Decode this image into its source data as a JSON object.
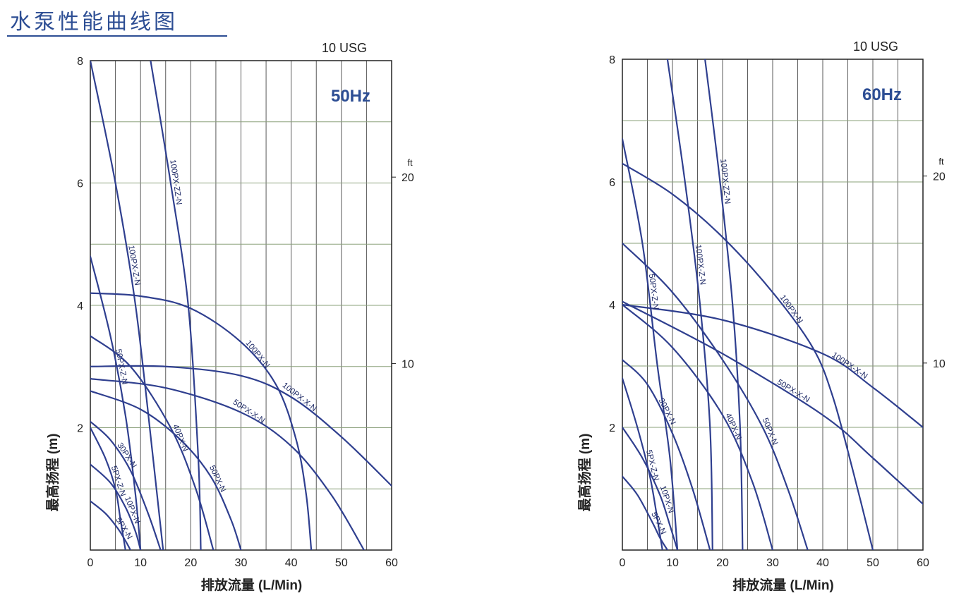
{
  "page": {
    "title": "水泵性能曲线图"
  },
  "colors": {
    "curve": "#2f3f8f",
    "grid": "#5a5a5a",
    "grid_minor": "#8aa07a",
    "title": "#2d4e94",
    "freq": "#2d4e94"
  },
  "chart_data": [
    {
      "type": "line",
      "frequency_label": "50Hz",
      "top_label": "10 USG",
      "xlabel": "排放流量 (L/Min)",
      "ylabel": "最高扬程 (m)",
      "y2_unit": "ft",
      "xlim": [
        0,
        60
      ],
      "ylim": [
        0,
        8
      ],
      "x_ticks": [
        0,
        10,
        20,
        30,
        40,
        50,
        60
      ],
      "y_ticks": [
        2,
        4,
        6,
        8
      ],
      "y2_ticks": [
        10,
        20
      ],
      "grid": true,
      "series": [
        {
          "name": "100PX-ZZ-N",
          "x": [
            12,
            16,
            19.5,
            21.5,
            22
          ],
          "y": [
            8,
            6,
            4,
            1.5,
            0
          ]
        },
        {
          "name": "100PX-Z-N",
          "x": [
            0,
            5,
            9,
            12.5,
            14.5
          ],
          "y": [
            8,
            6,
            4,
            1.5,
            0
          ]
        },
        {
          "name": "100PX-N",
          "x": [
            0,
            10,
            20,
            30,
            37,
            41,
            43,
            44
          ],
          "y": [
            4.2,
            4.15,
            3.95,
            3.4,
            2.7,
            1.8,
            0.9,
            0
          ]
        },
        {
          "name": "100PX-X-N",
          "x": [
            0,
            15,
            30,
            40,
            50,
            60
          ],
          "y": [
            3,
            3,
            2.85,
            2.5,
            1.85,
            1.05
          ]
        },
        {
          "name": "50PX-X-N",
          "x": [
            0,
            15,
            30,
            40,
            48,
            54.5
          ],
          "y": [
            2.8,
            2.65,
            2.25,
            1.7,
            0.9,
            0
          ]
        },
        {
          "name": "50PX-N",
          "x": [
            0,
            10,
            18,
            24,
            28,
            30
          ],
          "y": [
            2.6,
            2.3,
            1.8,
            1.2,
            0.5,
            0
          ]
        },
        {
          "name": "50PX-Z-N",
          "x": [
            0,
            4,
            7,
            9,
            10
          ],
          "y": [
            4.8,
            3.5,
            2.2,
            0.9,
            0
          ]
        },
        {
          "name": "40PX-N",
          "x": [
            0,
            8,
            16,
            21,
            24.5
          ],
          "y": [
            3.5,
            3,
            2,
            1,
            0
          ]
        },
        {
          "name": "30PX-N",
          "x": [
            0,
            4,
            8,
            11.5,
            14
          ],
          "y": [
            2.1,
            1.8,
            1.3,
            0.6,
            0
          ]
        },
        {
          "name": "10PX-N",
          "x": [
            0,
            4,
            7,
            9,
            10
          ],
          "y": [
            1.4,
            1.1,
            0.7,
            0.3,
            0
          ]
        },
        {
          "name": "5PX-Z-N",
          "x": [
            0,
            3,
            5,
            6,
            7
          ],
          "y": [
            2,
            1.5,
            1,
            0.5,
            0
          ]
        },
        {
          "name": "5PX-N",
          "x": [
            0,
            3,
            5.5,
            7,
            8
          ],
          "y": [
            0.8,
            0.6,
            0.35,
            0.15,
            0
          ]
        }
      ]
    },
    {
      "type": "line",
      "frequency_label": "60Hz",
      "top_label": "10 USG",
      "xlabel": "排放流量 (L/Min)",
      "ylabel": "最高扬程 (m)",
      "y2_unit": "ft",
      "xlim": [
        0,
        60
      ],
      "ylim": [
        0,
        8
      ],
      "x_ticks": [
        0,
        10,
        20,
        30,
        40,
        50,
        60
      ],
      "y_ticks": [
        2,
        4,
        6,
        8
      ],
      "y2_ticks": [
        10,
        20
      ],
      "grid": true,
      "series": [
        {
          "name": "100PX-ZZ-N",
          "x": [
            16.5,
            19.5,
            22,
            23.5,
            24
          ],
          "y": [
            8,
            6,
            4,
            2,
            0
          ]
        },
        {
          "name": "100PX-Z-N",
          "x": [
            9,
            12.5,
            15.5,
            17.5,
            18
          ],
          "y": [
            8,
            6,
            4,
            2,
            0
          ]
        },
        {
          "name": "100PX-N",
          "x": [
            0,
            10,
            20,
            30,
            38,
            42,
            46,
            50
          ],
          "y": [
            6.3,
            5.8,
            5.1,
            4.2,
            3.3,
            2.5,
            1.3,
            0
          ]
        },
        {
          "name": "100PX-X-N",
          "x": [
            0,
            20,
            40,
            50,
            60
          ],
          "y": [
            4,
            3.75,
            3.2,
            2.65,
            2
          ]
        },
        {
          "name": "50PX-X-N",
          "x": [
            0,
            20,
            40,
            50,
            60
          ],
          "y": [
            4.05,
            3.2,
            2.2,
            1.5,
            0.75
          ]
        },
        {
          "name": "50PX-N",
          "x": [
            0,
            10,
            20,
            28,
            33,
            37
          ],
          "y": [
            5,
            4.2,
            3.1,
            2,
            1,
            0
          ]
        },
        {
          "name": "50PX-Z-N",
          "x": [
            0,
            4,
            7,
            9.5,
            11
          ],
          "y": [
            6.7,
            5,
            3,
            1.5,
            0
          ]
        },
        {
          "name": "40PX-N",
          "x": [
            0,
            10,
            20,
            26,
            30
          ],
          "y": [
            4,
            3.3,
            2.2,
            1.1,
            0
          ]
        },
        {
          "name": "30PX-N",
          "x": [
            0,
            5,
            10,
            14,
            17.5
          ],
          "y": [
            3.1,
            2.7,
            1.9,
            1,
            0
          ]
        },
        {
          "name": "10PX-N",
          "x": [
            0,
            4,
            7.5,
            9.5,
            11
          ],
          "y": [
            2,
            1.5,
            0.9,
            0.4,
            0
          ]
        },
        {
          "name": "5PX-Z-N",
          "x": [
            0,
            3,
            5.5,
            7,
            8
          ],
          "y": [
            2.8,
            2,
            1.2,
            0.5,
            0
          ]
        },
        {
          "name": "5PX-N",
          "x": [
            0,
            3,
            6,
            7.5,
            9
          ],
          "y": [
            1.2,
            0.9,
            0.45,
            0.2,
            0
          ]
        }
      ]
    }
  ]
}
